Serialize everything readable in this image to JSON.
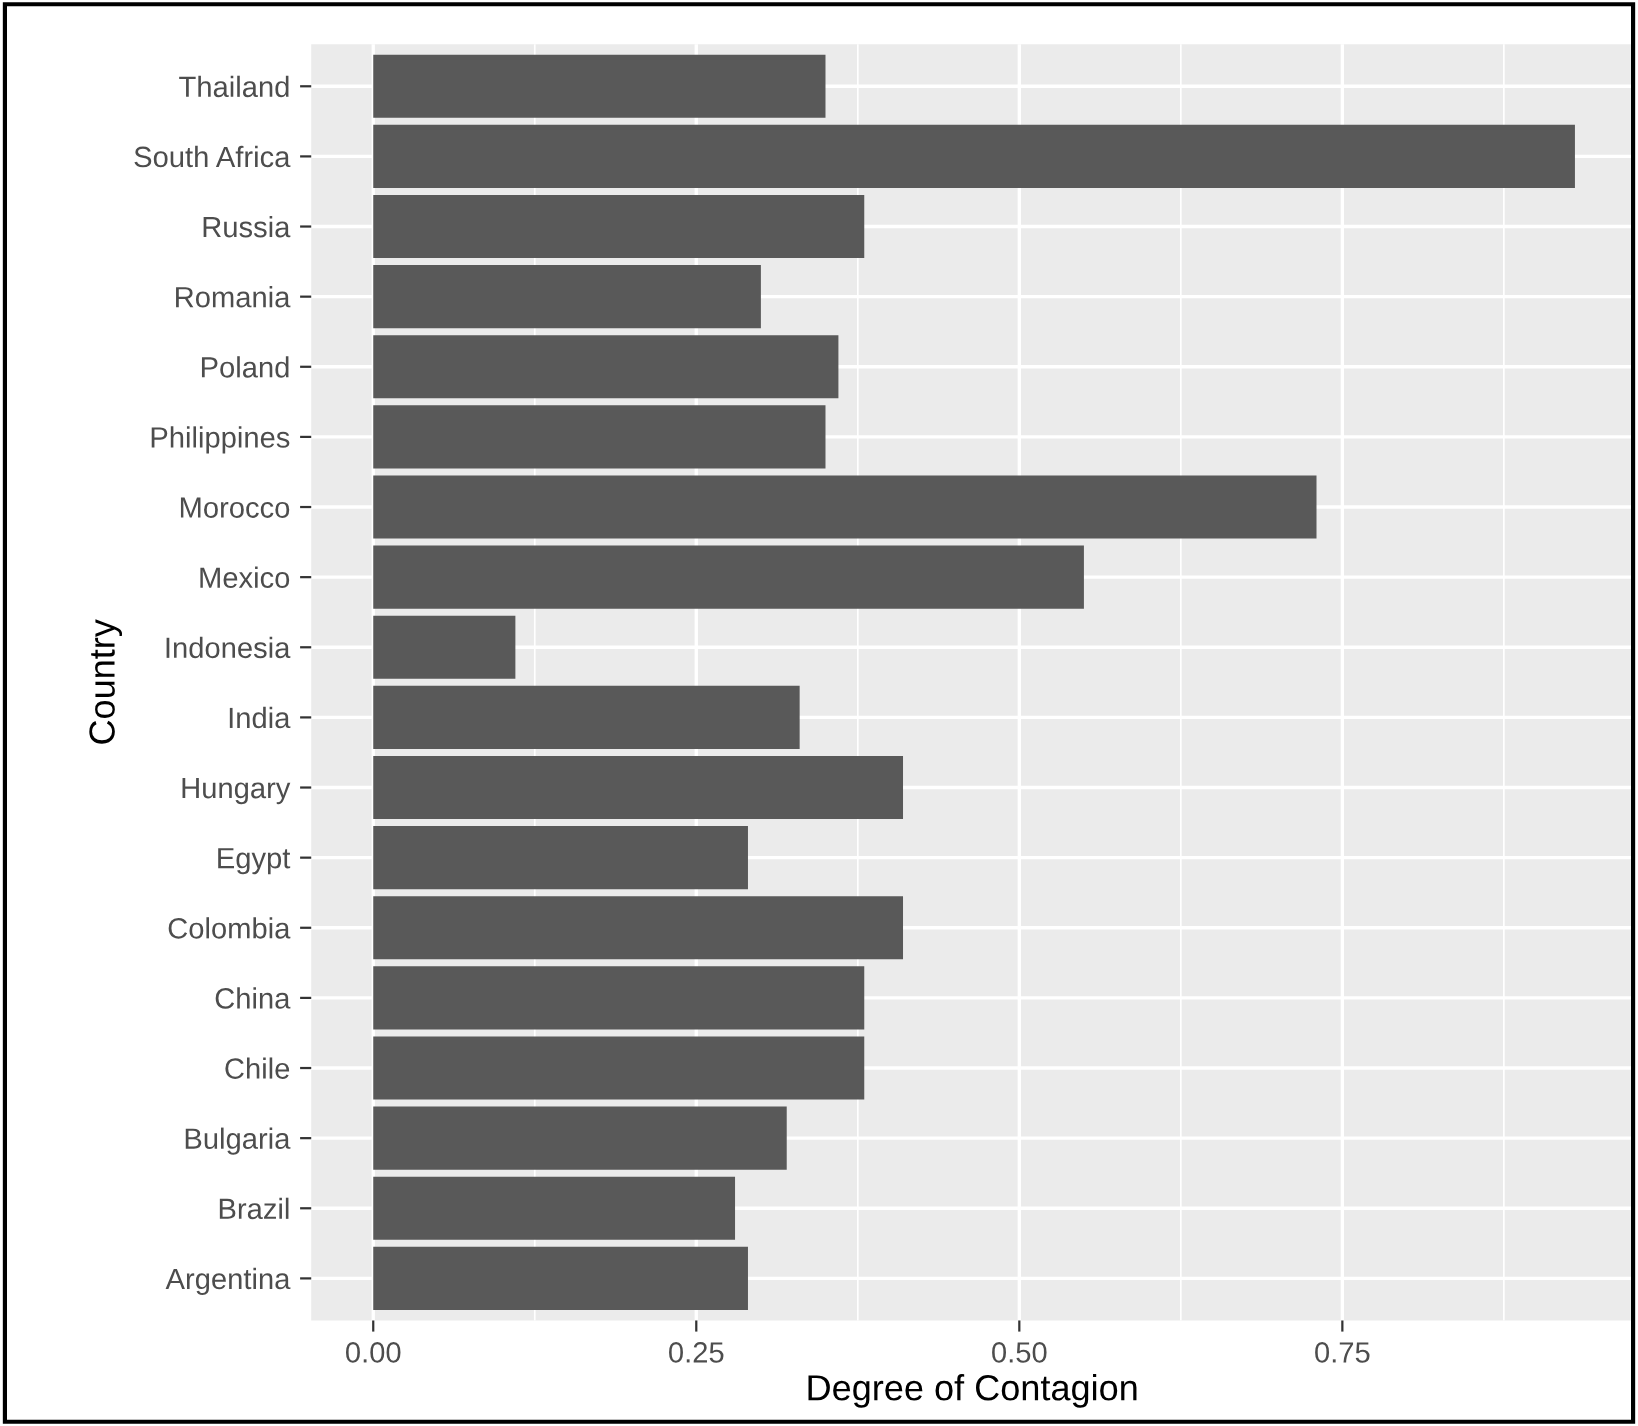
{
  "chart_data": {
    "type": "bar",
    "orientation": "horizontal",
    "xlabel": "Degree of Contagion",
    "ylabel": "Country",
    "categories": [
      "Thailand",
      "South Africa",
      "Russia",
      "Romania",
      "Poland",
      "Philippines",
      "Morocco",
      "Mexico",
      "Indonesia",
      "India",
      "Hungary",
      "Egypt",
      "Colombia",
      "China",
      "Chile",
      "Bulgaria",
      "Brazil",
      "Argentina"
    ],
    "values": [
      0.35,
      0.93,
      0.38,
      0.3,
      0.36,
      0.35,
      0.73,
      0.55,
      0.11,
      0.33,
      0.41,
      0.29,
      0.41,
      0.38,
      0.38,
      0.32,
      0.28,
      0.29
    ],
    "color": "#595959",
    "xlim": [
      -0.048,
      0.975
    ],
    "xticks": [
      {
        "value": 0,
        "label": "0.00"
      },
      {
        "value": 0.25,
        "label": "0.25"
      },
      {
        "value": 0.5,
        "label": "0.50"
      },
      {
        "value": 0.75,
        "label": "0.75"
      }
    ],
    "grid": true,
    "legend": false
  }
}
